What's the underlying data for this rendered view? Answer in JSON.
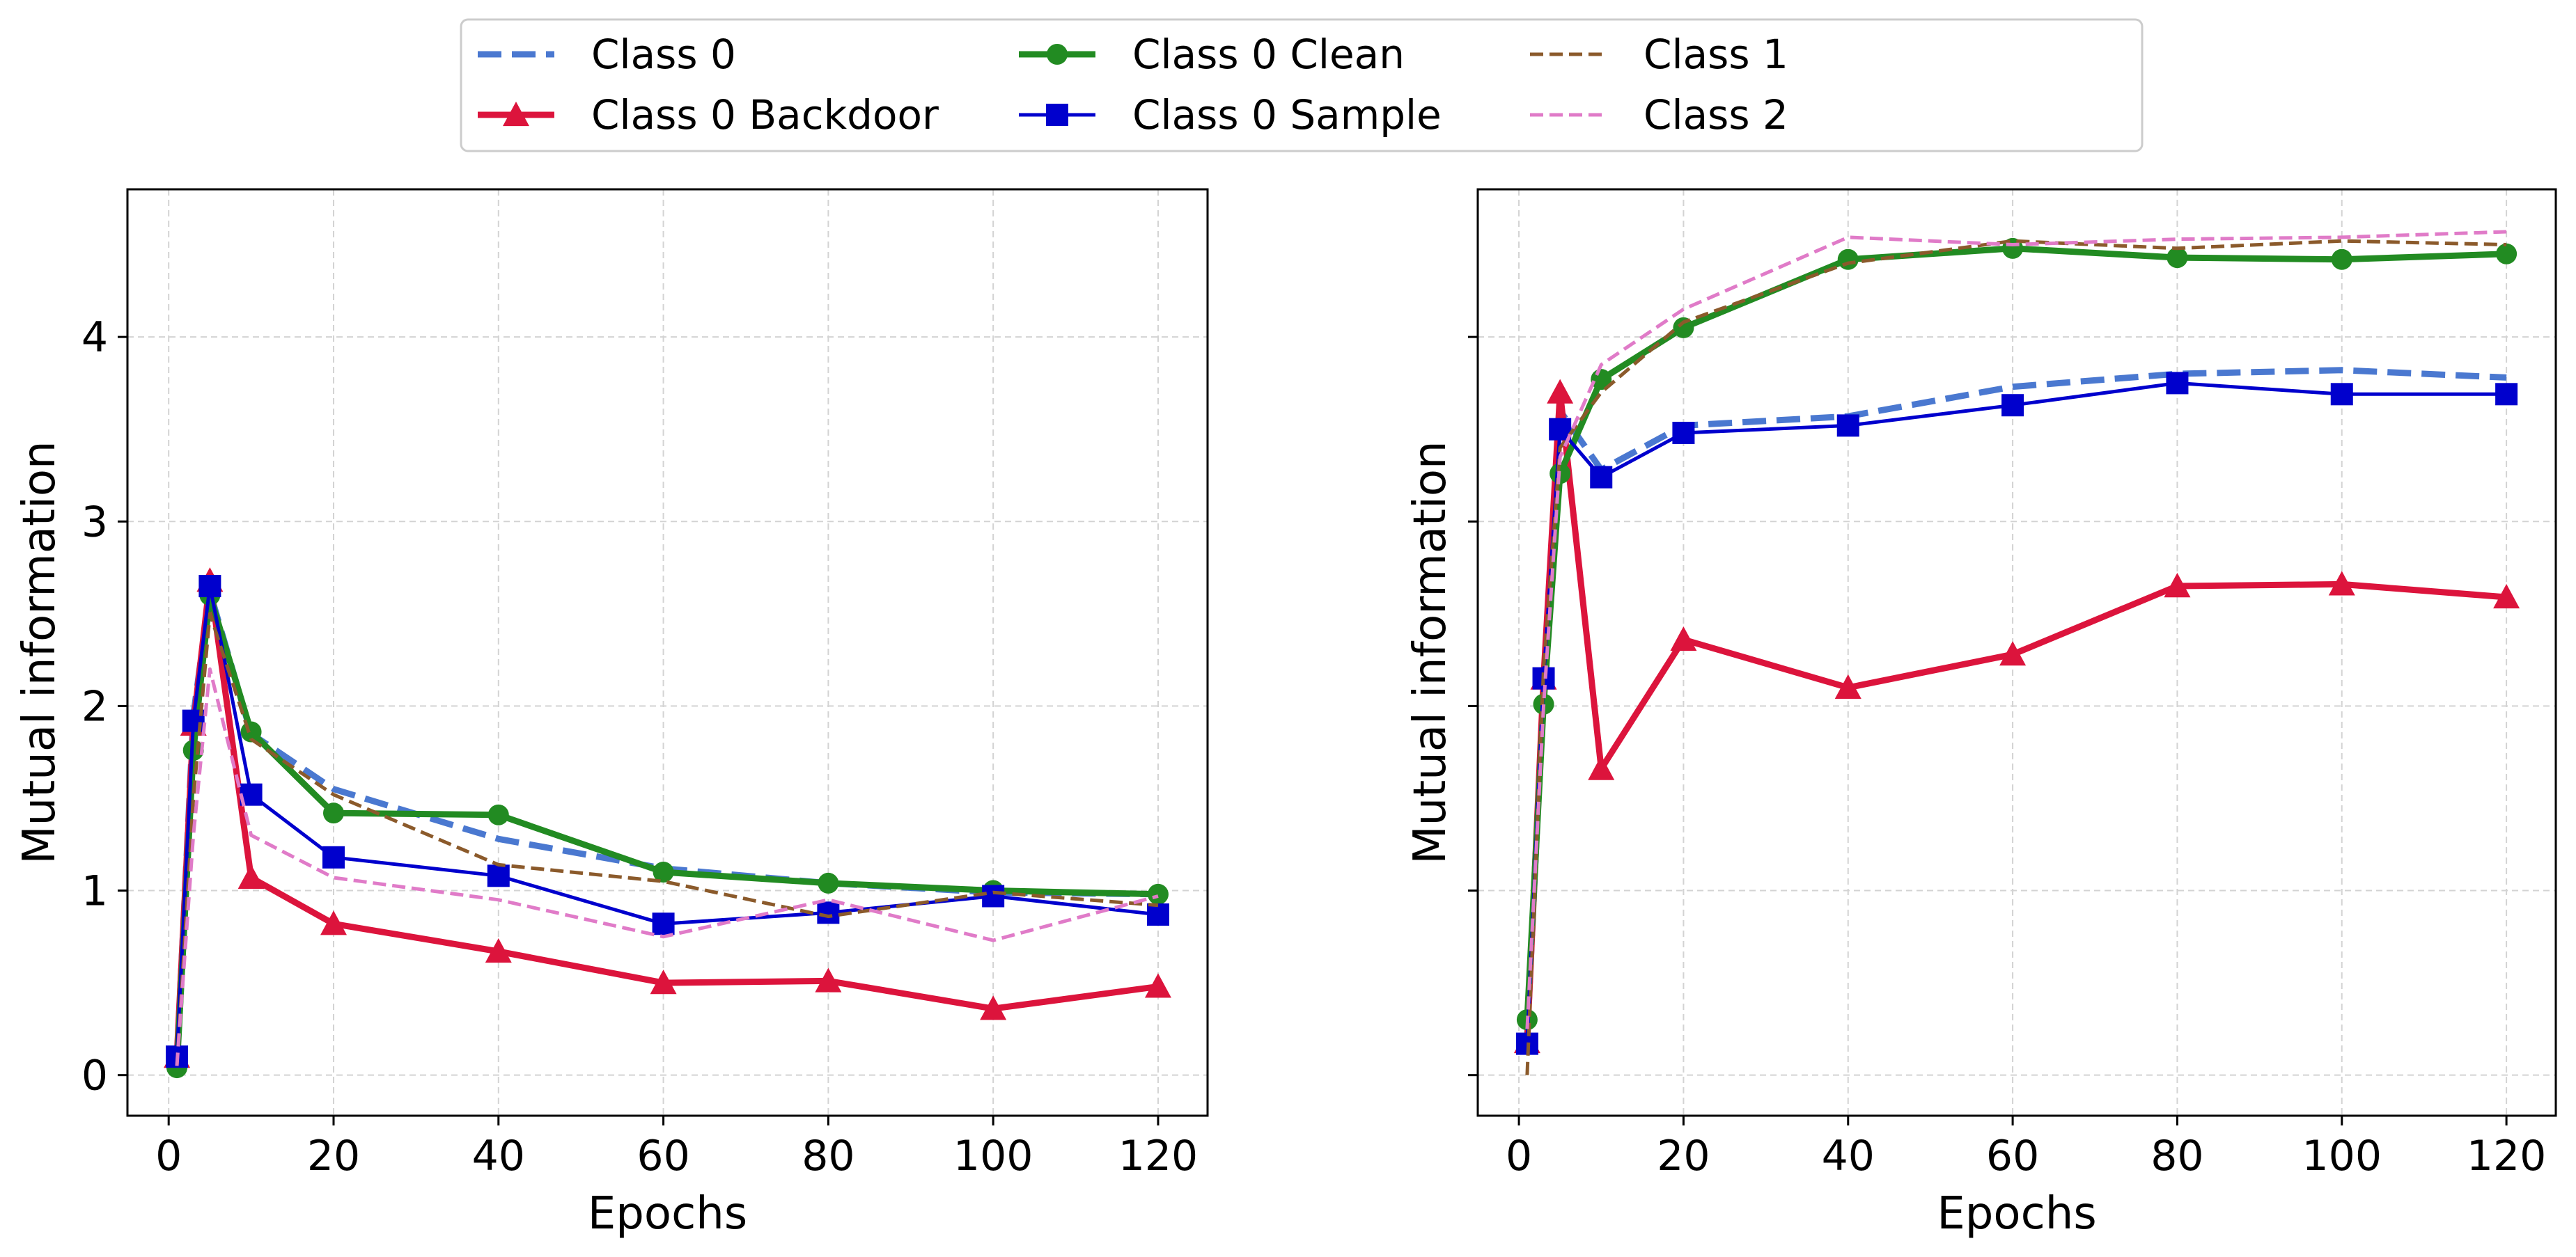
{
  "legend": {
    "ncol": 4,
    "placement": "top-center"
  },
  "chart_data": [
    {
      "type": "line",
      "panel": "left",
      "xlabel": "Epochs",
      "ylabel": "Mutual information",
      "xlim": [
        -5,
        126
      ],
      "ylim": [
        -0.22,
        4.8
      ],
      "xticks": [
        0,
        20,
        40,
        60,
        80,
        100,
        120
      ],
      "yticks": [
        0,
        1,
        2,
        3,
        4
      ],
      "grid": true,
      "series": [
        {
          "name": "Class 0",
          "color": "#4a78d0",
          "style": "dashed-thick",
          "marker": "none",
          "x": [
            1,
            3,
            5,
            10,
            20,
            40,
            60,
            80,
            100,
            120
          ],
          "y": [
            0.08,
            1.95,
            2.62,
            1.85,
            1.55,
            1.28,
            1.12,
            1.04,
            0.99,
            0.98
          ]
        },
        {
          "name": "Class 0 Backdoor",
          "color": "#dc143c",
          "style": "solid-thick",
          "marker": "triangle",
          "x": [
            1,
            3,
            5,
            10,
            20,
            40,
            60,
            80,
            100,
            120
          ],
          "y": [
            0.1,
            1.9,
            2.68,
            1.07,
            0.82,
            0.67,
            0.5,
            0.51,
            0.36,
            0.48
          ]
        },
        {
          "name": "Class 0 Clean",
          "color": "#228b22",
          "style": "solid-thick",
          "marker": "circle",
          "x": [
            1,
            3,
            5,
            10,
            20,
            40,
            60,
            80,
            100,
            120
          ],
          "y": [
            0.04,
            1.76,
            2.6,
            1.86,
            1.42,
            1.41,
            1.1,
            1.04,
            1.0,
            0.98
          ]
        },
        {
          "name": "Class 0 Sample",
          "color": "#0000cd",
          "style": "solid",
          "marker": "square",
          "x": [
            1,
            3,
            5,
            10,
            20,
            40,
            60,
            80,
            100,
            120
          ],
          "y": [
            0.1,
            1.92,
            2.65,
            1.52,
            1.18,
            1.08,
            0.82,
            0.88,
            0.97,
            0.87
          ]
        },
        {
          "name": "Class 1",
          "color": "#8b5a2b",
          "style": "dashed",
          "marker": "none",
          "x": [
            1,
            3,
            5,
            10,
            20,
            40,
            60,
            80,
            100,
            120
          ],
          "y": [
            0.05,
            1.5,
            2.5,
            1.82,
            1.52,
            1.14,
            1.05,
            0.86,
            0.99,
            0.92
          ]
        },
        {
          "name": "Class 2",
          "color": "#e07bc8",
          "style": "dashed",
          "marker": "none",
          "x": [
            1,
            3,
            5,
            10,
            20,
            40,
            60,
            80,
            100,
            120
          ],
          "y": [
            0.05,
            1.3,
            2.2,
            1.3,
            1.07,
            0.95,
            0.75,
            0.95,
            0.73,
            0.97
          ]
        }
      ]
    },
    {
      "type": "line",
      "panel": "right",
      "xlabel": "Epochs",
      "ylabel": "Mutual information",
      "xlim": [
        -5,
        126
      ],
      "ylim": [
        -0.22,
        4.8
      ],
      "xticks": [
        0,
        20,
        40,
        60,
        80,
        100,
        120
      ],
      "yticks": [
        0,
        1,
        2,
        3,
        4
      ],
      "yticklabels_visible": false,
      "grid": true,
      "series": [
        {
          "name": "Class 0",
          "color": "#4a78d0",
          "style": "dashed-thick",
          "marker": "none",
          "x": [
            1,
            3,
            5,
            10,
            20,
            40,
            60,
            80,
            100,
            120
          ],
          "y": [
            0.2,
            2.1,
            3.6,
            3.28,
            3.52,
            3.57,
            3.73,
            3.8,
            3.82,
            3.78
          ]
        },
        {
          "name": "Class 0 Backdoor",
          "color": "#dc143c",
          "style": "solid-thick",
          "marker": "triangle",
          "x": [
            1,
            3,
            5,
            10,
            20,
            40,
            60,
            80,
            100,
            120
          ],
          "y": [
            0.18,
            2.15,
            3.7,
            1.66,
            2.36,
            2.1,
            2.28,
            2.65,
            2.66,
            2.59
          ]
        },
        {
          "name": "Class 0 Clean",
          "color": "#228b22",
          "style": "solid-thick",
          "marker": "circle",
          "x": [
            1,
            3,
            5,
            10,
            20,
            40,
            60,
            80,
            100,
            120
          ],
          "y": [
            0.3,
            2.01,
            3.26,
            3.77,
            4.05,
            4.42,
            4.48,
            4.43,
            4.42,
            4.45
          ]
        },
        {
          "name": "Class 0 Sample",
          "color": "#0000cd",
          "style": "solid",
          "marker": "square",
          "x": [
            1,
            3,
            5,
            10,
            20,
            40,
            60,
            80,
            100,
            120
          ],
          "y": [
            0.17,
            2.15,
            3.5,
            3.24,
            3.48,
            3.52,
            3.63,
            3.75,
            3.69,
            3.69
          ]
        },
        {
          "name": "Class 1",
          "color": "#8b5a2b",
          "style": "dashed",
          "marker": "none",
          "x": [
            1,
            3,
            5,
            10,
            20,
            40,
            60,
            80,
            100,
            120
          ],
          "y": [
            0.0,
            2.2,
            3.4,
            3.7,
            4.08,
            4.4,
            4.52,
            4.48,
            4.52,
            4.5
          ]
        },
        {
          "name": "Class 2",
          "color": "#e07bc8",
          "style": "dashed",
          "marker": "none",
          "x": [
            1,
            3,
            5,
            10,
            20,
            40,
            60,
            80,
            100,
            120
          ],
          "y": [
            0.25,
            2.0,
            3.35,
            3.85,
            4.15,
            4.54,
            4.5,
            4.53,
            4.54,
            4.57
          ]
        }
      ]
    }
  ]
}
